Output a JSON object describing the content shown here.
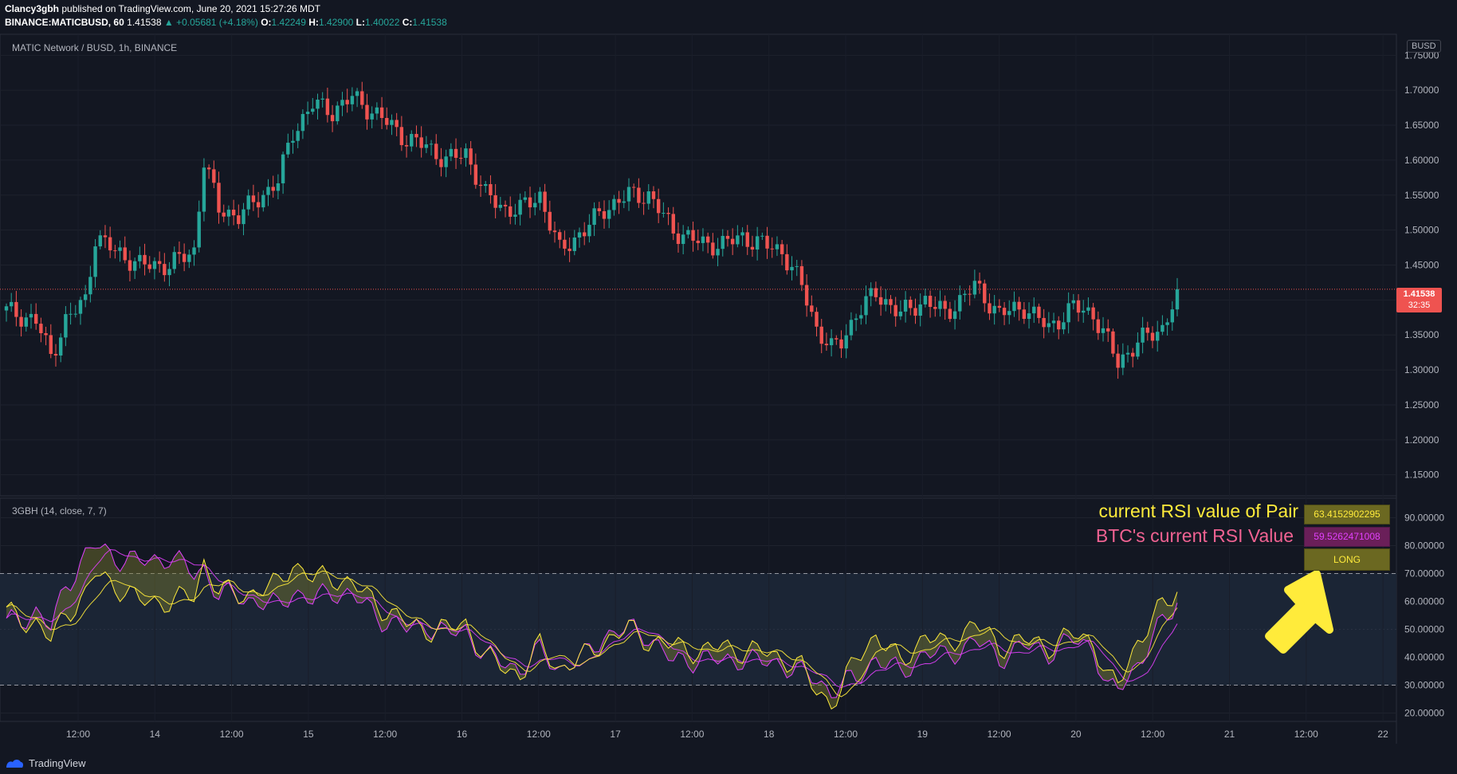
{
  "header": {
    "author": "Clancy3gbh",
    "published": "published on TradingView.com, June 20, 2021 15:27:26 MDT",
    "symbol": "BINANCE:MATICBUSD, 60",
    "last": "1.41538",
    "change": "▲ +0.05681 (+4.18%)",
    "o_label": "O:",
    "o_value": "1.42249",
    "h_label": "H:",
    "h_value": "1.42900",
    "l_label": "L:",
    "l_value": "1.40022",
    "c_label": "C:",
    "c_value": "1.41538"
  },
  "main_pane": {
    "title": "MATIC Network / BUSD, 1h, BINANCE",
    "currency": "BUSD",
    "price_tag": "1.41538",
    "countdown": "32:35"
  },
  "rsi_pane": {
    "title": "3GBH (14, close, 7, 7)",
    "pair_label": "current RSI value of Pair",
    "btc_label": "BTC's current RSI Value",
    "pair_value": "63.4152902295",
    "btc_value": "59.5262471008",
    "signal": "LONG"
  },
  "brand": "TradingView",
  "colors": {
    "background": "#131722",
    "up": "#26a69a",
    "down": "#ef5350",
    "pair_rsi": "#ffeb3b",
    "btc_rsi": "#e040fb",
    "arrow": "#ffeb3b"
  },
  "chart_data": [
    {
      "type": "candlestick",
      "title": "MATIC Network / BUSD, 1h, BINANCE",
      "ylim": [
        1.12,
        1.78
      ],
      "y_ticks": [
        "1.75000",
        "1.70000",
        "1.65000",
        "1.60000",
        "1.55000",
        "1.50000",
        "1.45000",
        "1.40000",
        "1.35000",
        "1.30000",
        "1.25000",
        "1.20000",
        "1.15000"
      ],
      "x_ticks": [
        "12:00",
        "14",
        "12:00",
        "15",
        "12:00",
        "16",
        "12:00",
        "17",
        "12:00",
        "18",
        "12:00",
        "19",
        "12:00",
        "20",
        "12:00",
        "21",
        "12:00",
        "22"
      ],
      "last_price": 1.41538,
      "close_path": [
        [
          0,
          1.385
        ],
        [
          6,
          1.37
        ],
        [
          9,
          1.32
        ],
        [
          12,
          1.37
        ],
        [
          16,
          1.4
        ],
        [
          18,
          1.49
        ],
        [
          22,
          1.47
        ],
        [
          27,
          1.45
        ],
        [
          33,
          1.45
        ],
        [
          38,
          1.47
        ],
        [
          40,
          1.6
        ],
        [
          43,
          1.53
        ],
        [
          47,
          1.52
        ],
        [
          55,
          1.57
        ],
        [
          58,
          1.64
        ],
        [
          62,
          1.68
        ],
        [
          66,
          1.67
        ],
        [
          70,
          1.69
        ],
        [
          76,
          1.66
        ],
        [
          81,
          1.63
        ],
        [
          85,
          1.62
        ],
        [
          89,
          1.6
        ],
        [
          93,
          1.61
        ],
        [
          97,
          1.55
        ],
        [
          101,
          1.53
        ],
        [
          104,
          1.53
        ],
        [
          108,
          1.55
        ],
        [
          112,
          1.47
        ],
        [
          117,
          1.5
        ],
        [
          121,
          1.53
        ],
        [
          126,
          1.55
        ],
        [
          130,
          1.55
        ],
        [
          135,
          1.5
        ],
        [
          141,
          1.48
        ],
        [
          145,
          1.48
        ],
        [
          149,
          1.49
        ],
        [
          153,
          1.48
        ],
        [
          157,
          1.47
        ],
        [
          161,
          1.42
        ],
        [
          164,
          1.36
        ],
        [
          167,
          1.33
        ],
        [
          169,
          1.34
        ],
        [
          172,
          1.38
        ],
        [
          176,
          1.41
        ],
        [
          181,
          1.38
        ],
        [
          186,
          1.4
        ],
        [
          190,
          1.38
        ],
        [
          196,
          1.42
        ],
        [
          201,
          1.38
        ],
        [
          206,
          1.39
        ],
        [
          211,
          1.36
        ],
        [
          216,
          1.39
        ],
        [
          220,
          1.38
        ],
        [
          223,
          1.34
        ],
        [
          225,
          1.31
        ],
        [
          229,
          1.34
        ],
        [
          234,
          1.36
        ],
        [
          237,
          1.41
        ]
      ]
    },
    {
      "type": "line",
      "title": "3GBH (14, close, 7, 7)",
      "ylim": [
        17,
        97
      ],
      "y_ticks": [
        "90.00000",
        "80.00000",
        "70.00000",
        "60.00000",
        "50.00000",
        "40.00000",
        "30.00000",
        "20.00000"
      ],
      "bands": [
        70,
        30,
        50
      ],
      "series": [
        {
          "name": "Pair RSI",
          "color": "#ffeb3b",
          "points": [
            [
              0,
              56
            ],
            [
              6,
              52
            ],
            [
              9,
              46
            ],
            [
              12,
              56
            ],
            [
              16,
              62
            ],
            [
              18,
              70
            ],
            [
              22,
              66
            ],
            [
              27,
              60
            ],
            [
              33,
              60
            ],
            [
              38,
              62
            ],
            [
              40,
              74
            ],
            [
              43,
              64
            ],
            [
              47,
              62
            ],
            [
              55,
              66
            ],
            [
              58,
              74
            ],
            [
              62,
              68
            ],
            [
              66,
              69
            ],
            [
              70,
              66
            ],
            [
              76,
              58
            ],
            [
              81,
              52
            ],
            [
              85,
              50
            ],
            [
              89,
              50
            ],
            [
              93,
              52
            ],
            [
              97,
              40
            ],
            [
              101,
              36
            ],
            [
              104,
              34
            ],
            [
              108,
              44
            ],
            [
              112,
              36
            ],
            [
              117,
              40
            ],
            [
              121,
              46
            ],
            [
              126,
              50
            ],
            [
              130,
              46
            ],
            [
              135,
              44
            ],
            [
              141,
              42
            ],
            [
              145,
              44
            ],
            [
              149,
              42
            ],
            [
              153,
              42
            ],
            [
              157,
              40
            ],
            [
              161,
              36
            ],
            [
              164,
              28
            ],
            [
              167,
              24
            ],
            [
              169,
              28
            ],
            [
              172,
              40
            ],
            [
              176,
              48
            ],
            [
              181,
              38
            ],
            [
              186,
              48
            ],
            [
              190,
              44
            ],
            [
              196,
              52
            ],
            [
              201,
              44
            ],
            [
              206,
              46
            ],
            [
              211,
              44
            ],
            [
              216,
              48
            ],
            [
              220,
              46
            ],
            [
              223,
              32
            ],
            [
              225,
              30
            ],
            [
              229,
              46
            ],
            [
              234,
              58
            ],
            [
              237,
              63.4
            ]
          ]
        },
        {
          "name": "BTC RSI",
          "color": "#e040fb",
          "points": [
            [
              0,
              52
            ],
            [
              6,
              56
            ],
            [
              9,
              50
            ],
            [
              12,
              66
            ],
            [
              16,
              76
            ],
            [
              18,
              80
            ],
            [
              22,
              76
            ],
            [
              27,
              74
            ],
            [
              33,
              76
            ],
            [
              38,
              70
            ],
            [
              40,
              72
            ],
            [
              43,
              62
            ],
            [
              47,
              62
            ],
            [
              55,
              58
            ],
            [
              58,
              64
            ],
            [
              62,
              60
            ],
            [
              66,
              64
            ],
            [
              70,
              62
            ],
            [
              76,
              54
            ],
            [
              81,
              50
            ],
            [
              85,
              52
            ],
            [
              89,
              48
            ],
            [
              93,
              50
            ],
            [
              97,
              40
            ],
            [
              101,
              38
            ],
            [
              104,
              36
            ],
            [
              108,
              42
            ],
            [
              112,
              36
            ],
            [
              117,
              40
            ],
            [
              121,
              48
            ],
            [
              126,
              50
            ],
            [
              130,
              48
            ],
            [
              135,
              38
            ],
            [
              141,
              40
            ],
            [
              145,
              38
            ],
            [
              149,
              40
            ],
            [
              153,
              38
            ],
            [
              157,
              38
            ],
            [
              161,
              34
            ],
            [
              164,
              32
            ],
            [
              167,
              28
            ],
            [
              169,
              30
            ],
            [
              172,
              32
            ],
            [
              176,
              40
            ],
            [
              181,
              34
            ],
            [
              186,
              42
            ],
            [
              190,
              40
            ],
            [
              196,
              46
            ],
            [
              201,
              40
            ],
            [
              206,
              44
            ],
            [
              211,
              42
            ],
            [
              216,
              46
            ],
            [
              220,
              44
            ],
            [
              223,
              28
            ],
            [
              225,
              28
            ],
            [
              229,
              38
            ],
            [
              234,
              52
            ],
            [
              237,
              59.5
            ]
          ]
        }
      ]
    }
  ]
}
